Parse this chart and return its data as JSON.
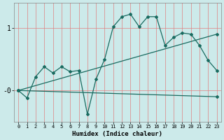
{
  "background_color": "#cceaea",
  "grid_color": "#e08080",
  "line_color": "#1a6b60",
  "xlabel": "Humidex (Indice chaleur)",
  "ytick_labels": [
    "-0",
    "1"
  ],
  "ytick_vals": [
    0.0,
    1.0
  ],
  "xlim": [
    -0.5,
    23.5
  ],
  "ylim": [
    -0.5,
    1.4
  ],
  "line1_x": [
    0,
    1,
    2,
    3,
    4,
    5,
    6,
    7,
    8,
    9,
    10,
    11,
    12,
    13,
    14,
    15,
    16,
    17,
    18,
    19,
    20,
    21,
    22,
    23
  ],
  "line1_y": [
    0.0,
    -0.12,
    0.22,
    0.38,
    0.28,
    0.38,
    0.3,
    0.32,
    -0.38,
    0.18,
    0.5,
    1.02,
    1.18,
    1.22,
    1.02,
    1.18,
    1.18,
    0.72,
    0.85,
    0.92,
    0.9,
    0.72,
    0.48,
    0.32
  ],
  "line2_x": [
    0,
    1,
    2,
    3,
    4,
    5,
    6,
    7,
    8,
    9,
    10,
    11,
    12,
    13,
    14,
    15,
    16,
    17,
    18,
    19,
    20,
    21,
    22,
    23
  ],
  "line2_y": [
    0.0,
    0.04,
    0.08,
    0.12,
    0.16,
    0.2,
    0.24,
    0.28,
    0.32,
    0.36,
    0.4,
    0.44,
    0.48,
    0.52,
    0.56,
    0.6,
    0.64,
    0.68,
    0.72,
    0.76,
    0.8,
    0.84,
    0.88,
    0.92
  ],
  "line3_x": [
    0,
    1,
    2,
    3,
    4,
    5,
    6,
    7,
    8,
    9,
    10,
    11,
    12,
    13,
    14,
    15,
    16,
    17,
    18,
    19,
    20,
    21,
    22,
    23
  ],
  "line3_y": [
    0.0,
    -0.004,
    -0.008,
    -0.012,
    -0.016,
    -0.02,
    -0.024,
    -0.028,
    -0.032,
    -0.036,
    -0.04,
    -0.044,
    -0.048,
    -0.052,
    -0.056,
    -0.06,
    -0.064,
    -0.068,
    -0.072,
    -0.076,
    -0.08,
    -0.084,
    -0.088,
    -0.092
  ]
}
